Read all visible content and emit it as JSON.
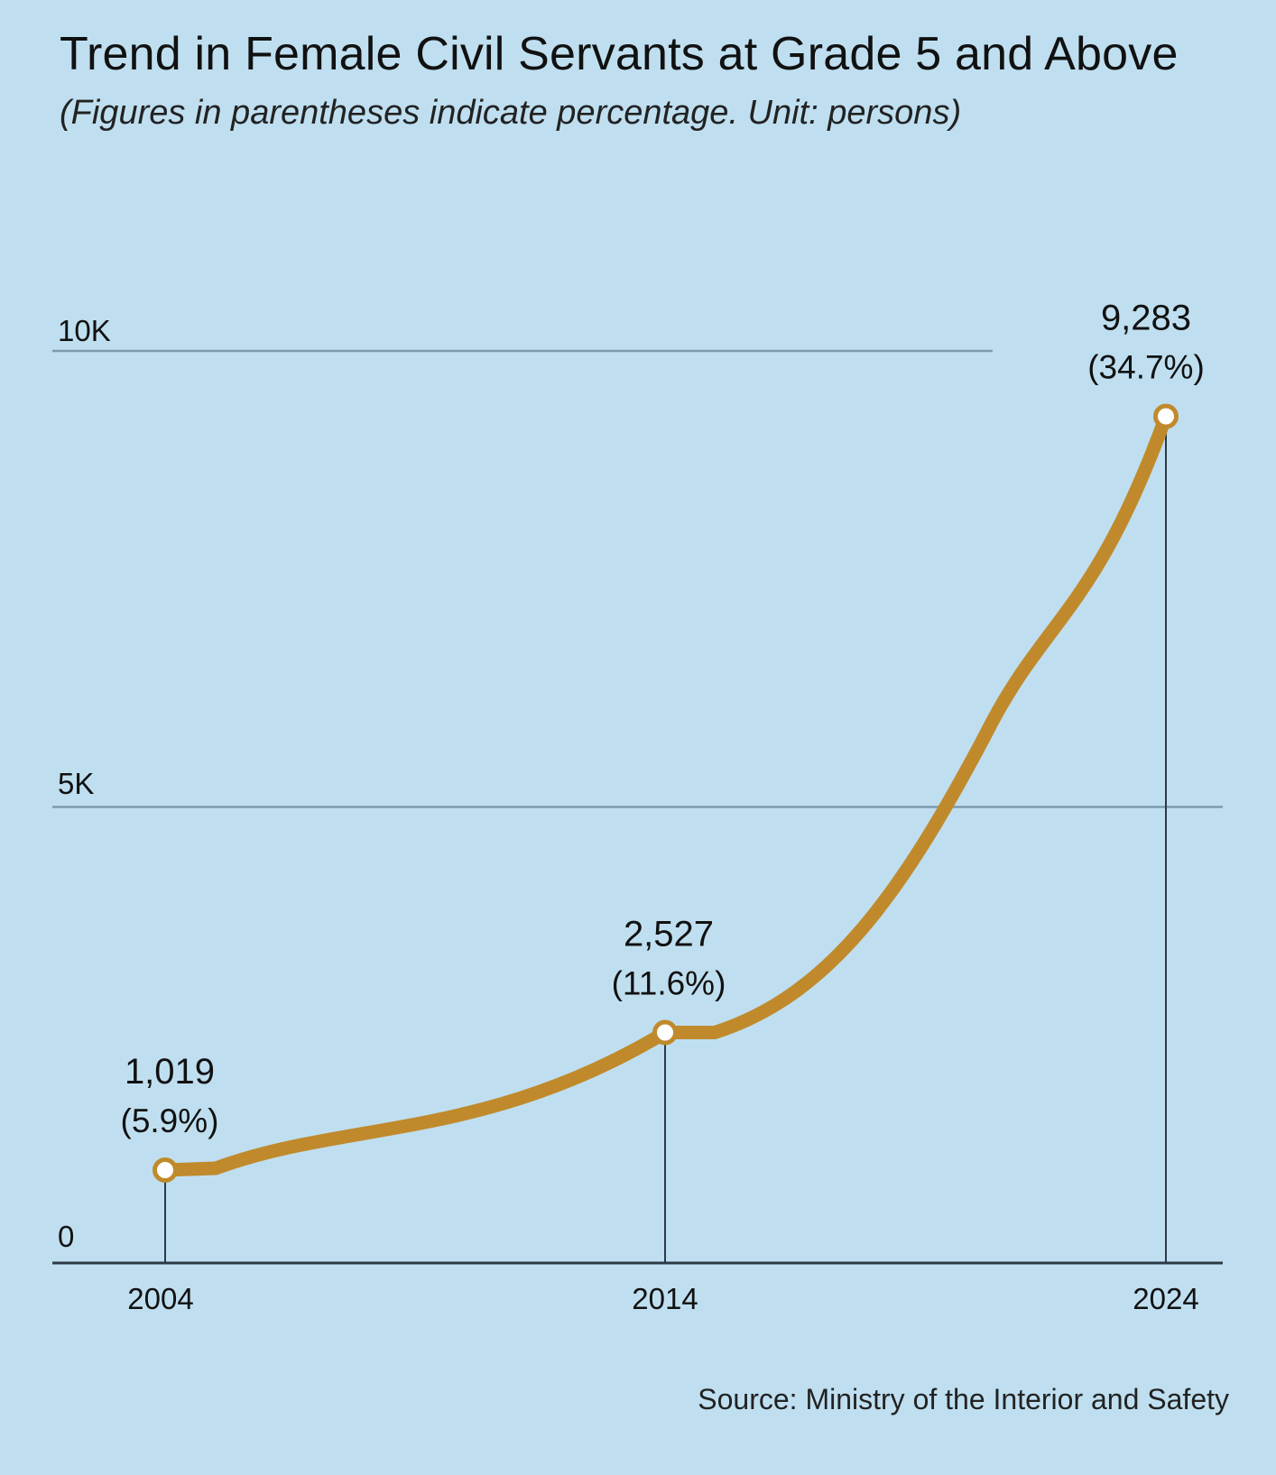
{
  "header": {
    "title": "Trend in Female Civil Servants at Grade 5 and Above",
    "subtitle": "(Figures in parentheses indicate percentage. Unit: persons)"
  },
  "footer": {
    "source": "Source: Ministry of the Interior and Safety"
  },
  "colors": {
    "background": "#bfdff0",
    "line": "#c08a2c",
    "gridline": "#7e9aaa",
    "axis": "#2b3a44",
    "marker_fill": "#ffffff"
  },
  "chart_data": {
    "type": "line",
    "title": "Trend in Female Civil Servants at Grade 5 and Above",
    "subtitle": "(Figures in parentheses indicate percentage. Unit: persons)",
    "xlabel": "",
    "ylabel": "",
    "ylim": [
      0,
      10000
    ],
    "yticks": [
      0,
      5000,
      10000
    ],
    "ytick_labels": [
      "0",
      "5K",
      "10K"
    ],
    "xticks": [
      "2004",
      "2014",
      "2024"
    ],
    "grid": true,
    "series": [
      {
        "points": [
          {
            "x": "2004",
            "value": 1019,
            "label": "1,019",
            "percent": "(5.9%)"
          },
          {
            "x": "2014",
            "value": 2527,
            "label": "2,527",
            "percent": "(11.6%)"
          },
          {
            "x": "2024",
            "value": 9283,
            "label": "9,283",
            "percent": "(34.7%)"
          }
        ]
      }
    ]
  }
}
